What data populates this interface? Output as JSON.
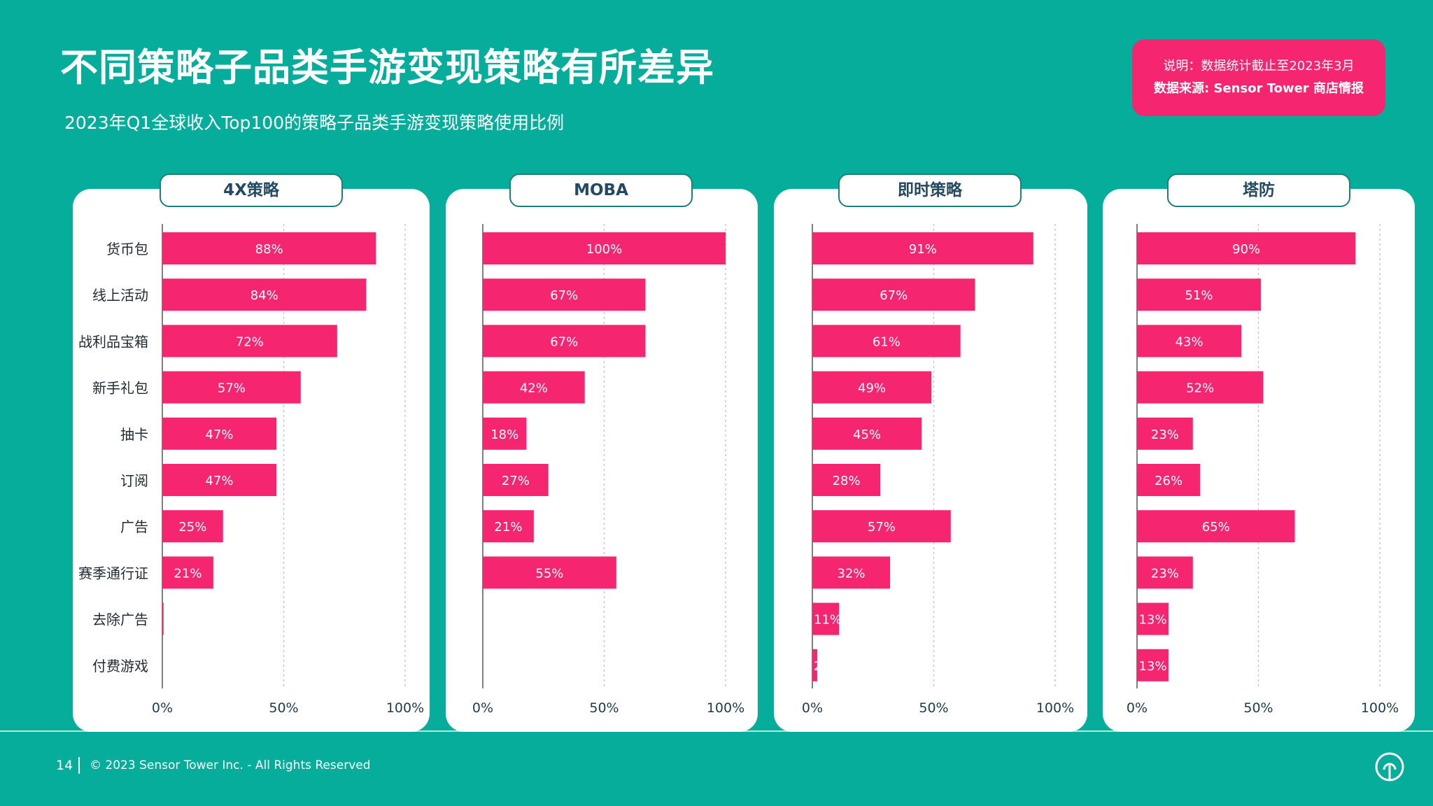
{
  "header": {
    "title": "不同策略子品类手游变现策略有所差异",
    "subtitle": "2023年Q1全球收入Top100的策略子品类手游变现策略使用比例"
  },
  "note": {
    "line1": "说明：数据统计截止至2023年3月",
    "line2": "数据来源: Sensor Tower 商店情报"
  },
  "footer": {
    "page_number": "14",
    "copyright": "© 2023 Sensor Tower Inc. - All Rights Reserved",
    "logo_icon": "sensor-tower-logo-icon"
  },
  "colors": {
    "background": "#06ad9b",
    "bar": "#f5256f",
    "panel": "#ffffff"
  },
  "chart_data": [
    {
      "type": "bar",
      "orientation": "horizontal",
      "title": "4X策略",
      "categories": [
        "货币包",
        "线上活动",
        "战利品宝箱",
        "新手礼包",
        "抽卡",
        "订阅",
        "广告",
        "赛季通行证",
        "去除广告",
        "付费游戏"
      ],
      "values": [
        88,
        84,
        72,
        57,
        47,
        47,
        25,
        21,
        0.5,
        0
      ],
      "labels": [
        "88%",
        "84%",
        "72%",
        "57%",
        "47%",
        "47%",
        "25%",
        "21%",
        "",
        ""
      ],
      "xticks": [
        "0%",
        "50%",
        "100%"
      ],
      "xlim": [
        0,
        100
      ],
      "grid": true
    },
    {
      "type": "bar",
      "orientation": "horizontal",
      "title": "MOBA",
      "categories": [
        "货币包",
        "线上活动",
        "战利品宝箱",
        "新手礼包",
        "抽卡",
        "订阅",
        "广告",
        "赛季通行证",
        "去除广告",
        "付费游戏"
      ],
      "values": [
        100,
        67,
        67,
        42,
        18,
        27,
        21,
        55,
        0,
        0
      ],
      "labels": [
        "100%",
        "67%",
        "67%",
        "42%",
        "18%",
        "27%",
        "21%",
        "55%",
        "",
        ""
      ],
      "xticks": [
        "0%",
        "50%",
        "100%"
      ],
      "xlim": [
        0,
        100
      ],
      "grid": true
    },
    {
      "type": "bar",
      "orientation": "horizontal",
      "title": "即时策略",
      "categories": [
        "货币包",
        "线上活动",
        "战利品宝箱",
        "新手礼包",
        "抽卡",
        "订阅",
        "广告",
        "赛季通行证",
        "去除广告",
        "付费游戏"
      ],
      "values": [
        91,
        67,
        61,
        49,
        45,
        28,
        57,
        32,
        11,
        2
      ],
      "labels": [
        "91%",
        "67%",
        "61%",
        "49%",
        "45%",
        "28%",
        "57%",
        "32%",
        "11%",
        "2"
      ],
      "xticks": [
        "0%",
        "50%",
        "100%"
      ],
      "xlim": [
        0,
        100
      ],
      "grid": true
    },
    {
      "type": "bar",
      "orientation": "horizontal",
      "title": "塔防",
      "categories": [
        "货币包",
        "线上活动",
        "战利品宝箱",
        "新手礼包",
        "抽卡",
        "订阅",
        "广告",
        "赛季通行证",
        "去除广告",
        "付费游戏"
      ],
      "values": [
        90,
        51,
        43,
        52,
        23,
        26,
        65,
        23,
        13,
        13
      ],
      "labels": [
        "90%",
        "51%",
        "43%",
        "52%",
        "23%",
        "26%",
        "65%",
        "23%",
        "13%",
        "13%"
      ],
      "xticks": [
        "0%",
        "50%",
        "100%"
      ],
      "xlim": [
        0,
        100
      ],
      "grid": true
    }
  ]
}
